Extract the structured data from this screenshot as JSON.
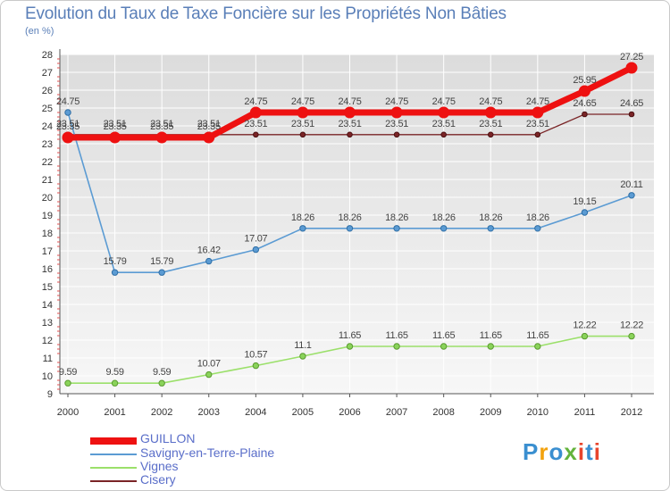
{
  "title": "Evolution du Taux de Taxe Foncière sur les Propriétés Non Bâties",
  "unit_label": "(en %)",
  "logo": {
    "text": "Proxiti",
    "colors": [
      "#3a8fd0",
      "#f2a20e",
      "#3a8fd0",
      "#63b33c",
      "#e8452c",
      "#3a8fd0",
      "#e8452c"
    ]
  },
  "chart_data": {
    "type": "line",
    "x": [
      "2000",
      "2001",
      "2002",
      "2003",
      "2004",
      "2005",
      "2006",
      "2007",
      "2008",
      "2009",
      "2010",
      "2011",
      "2012"
    ],
    "ylim": [
      9,
      28
    ],
    "yticks": [
      "9",
      "10",
      "11",
      "12",
      "13",
      "14",
      "15",
      "16",
      "17",
      "18",
      "19",
      "20",
      "21",
      "22",
      "23",
      "24",
      "25",
      "26",
      "27",
      "28"
    ],
    "grid": true,
    "series": [
      {
        "name": "Cisery",
        "color": "#7a2426",
        "values": [
          23.51,
          23.51,
          23.51,
          23.51,
          23.51,
          23.51,
          23.51,
          23.51,
          23.51,
          23.51,
          23.51,
          24.65,
          24.65
        ],
        "labels": [
          "23.51",
          "23.51",
          "23.51",
          "23.51",
          "23.51",
          "23.51",
          "23.51",
          "23.51",
          "23.51",
          "23.51",
          "23.51",
          "24.65",
          "24.65"
        ]
      },
      {
        "name": "Vignes",
        "color": "#9be06a",
        "values": [
          9.59,
          9.59,
          9.59,
          10.07,
          10.57,
          11.1,
          11.65,
          11.65,
          11.65,
          11.65,
          11.65,
          12.22,
          12.22
        ],
        "labels": [
          "9.59",
          "9.59",
          "9.59",
          "10.07",
          "10.57",
          "11.1",
          "11.65",
          "11.65",
          "11.65",
          "11.65",
          "11.65",
          "12.22",
          "12.22"
        ]
      },
      {
        "name": "Savigny-en-Terre-Plaine",
        "color": "#5b9bd3",
        "values": [
          24.75,
          15.79,
          15.79,
          16.42,
          17.07,
          18.26,
          18.26,
          18.26,
          18.26,
          18.26,
          18.26,
          19.15,
          20.11
        ],
        "labels": [
          "24.75",
          "15.79",
          "15.79",
          "16.42",
          "17.07",
          "18.26",
          "18.26",
          "18.26",
          "18.26",
          "18.26",
          "18.26",
          "19.15",
          "20.11"
        ]
      },
      {
        "name": "GUILLON",
        "color": "#ee1111",
        "values": [
          23.35,
          23.35,
          23.35,
          23.35,
          24.75,
          24.75,
          24.75,
          24.75,
          24.75,
          24.75,
          24.75,
          25.95,
          27.25
        ],
        "labels": [
          "23.35",
          "23.35",
          "23.35",
          "23.35",
          "24.75",
          "24.75",
          "24.75",
          "24.75",
          "24.75",
          "24.75",
          "24.75",
          "25.95",
          "27.25"
        ]
      }
    ],
    "legend": [
      "GUILLON",
      "Savigny-en-Terre-Plaine",
      "Vignes",
      "Cisery"
    ],
    "legend_position": "bottom-left"
  }
}
